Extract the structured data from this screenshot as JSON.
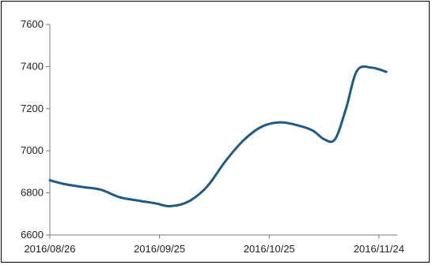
{
  "chart_data": {
    "type": "line",
    "title": "",
    "xlabel": "",
    "ylabel": "",
    "ylim": [
      6600,
      7600
    ],
    "yticks": [
      6600,
      6800,
      7000,
      7200,
      7400,
      7600
    ],
    "xlim": [
      "2016-08-26",
      "2016-11-29"
    ],
    "xtick_labels": [
      "2016/08/26",
      "2016/09/25",
      "2016/10/25",
      "2016/11/24"
    ],
    "xtick_dates": [
      "2016-08-26",
      "2016-09-25",
      "2016-10-25",
      "2016-11-24"
    ],
    "grid": false,
    "legend": "none",
    "colors": {
      "line": "#1f5a86",
      "axis": "#7a7a7a",
      "text": "#222222"
    },
    "series": [
      {
        "points": [
          [
            "2016-08-26",
            6860
          ],
          [
            "2016-08-30",
            6842
          ],
          [
            "2016-09-04",
            6828
          ],
          [
            "2016-09-09",
            6815
          ],
          [
            "2016-09-14",
            6780
          ],
          [
            "2016-09-19",
            6764
          ],
          [
            "2016-09-24",
            6750
          ],
          [
            "2016-09-28",
            6737
          ],
          [
            "2016-10-03",
            6760
          ],
          [
            "2016-10-08",
            6830
          ],
          [
            "2016-10-13",
            6950
          ],
          [
            "2016-10-18",
            7050
          ],
          [
            "2016-10-23",
            7115
          ],
          [
            "2016-10-28",
            7135
          ],
          [
            "2016-11-02",
            7120
          ],
          [
            "2016-11-06",
            7095
          ],
          [
            "2016-11-09",
            7055
          ],
          [
            "2016-11-12",
            7055
          ],
          [
            "2016-11-15",
            7200
          ],
          [
            "2016-11-18",
            7380
          ],
          [
            "2016-11-22",
            7395
          ],
          [
            "2016-11-26",
            7375
          ]
        ]
      }
    ]
  }
}
